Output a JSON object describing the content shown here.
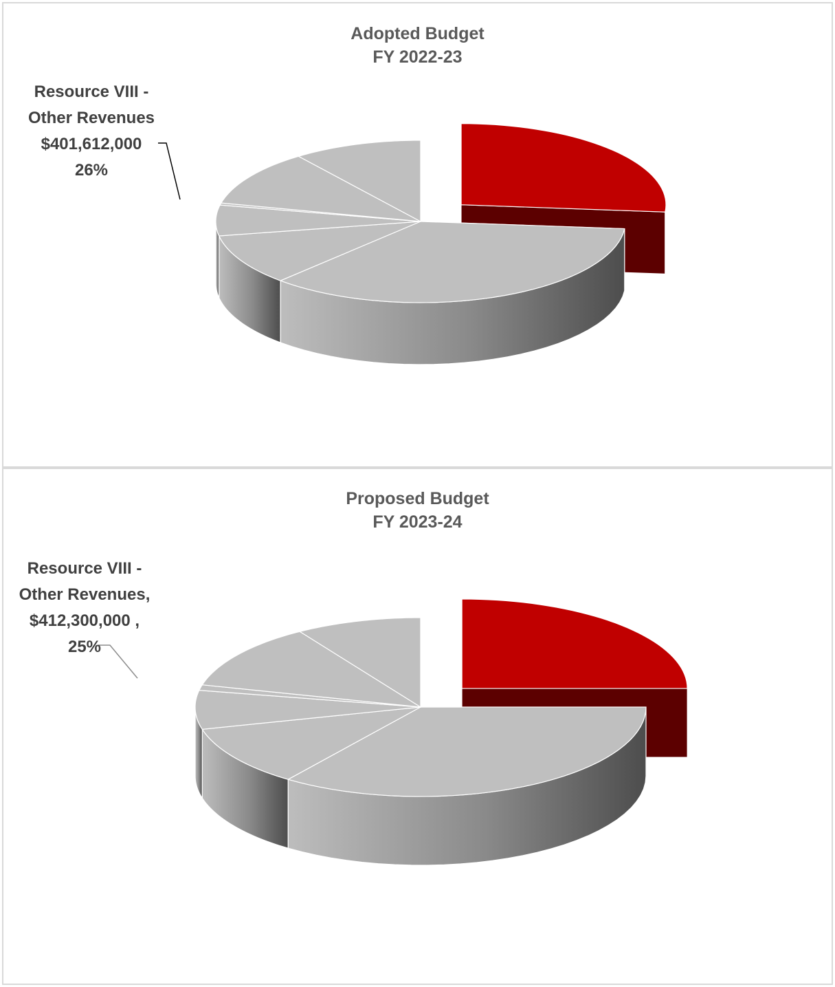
{
  "chart_data": [
    {
      "type": "pie",
      "style": "3d-exploded",
      "title": [
        "Adopted Budget",
        "FY 2022-23"
      ],
      "highlight_color": "#c00000",
      "other_color": "#bfbfbf",
      "slices": [
        {
          "label": "Resource VIII - Other Revenues",
          "value": 401612000,
          "percent": 26,
          "highlight": true
        },
        {
          "label": "",
          "percent": 35
        },
        {
          "label": "",
          "percent": 10
        },
        {
          "label": "",
          "percent": 6
        },
        {
          "label": "",
          "percent": 0.4
        },
        {
          "label": "",
          "percent": 11
        },
        {
          "label": "",
          "percent": 10
        }
      ],
      "callout": [
        "Resource VIII -",
        "Other Revenues",
        "$401,612,000",
        "26%"
      ]
    },
    {
      "type": "pie",
      "style": "3d-exploded",
      "title": [
        "Proposed Budget",
        "FY 2023-24"
      ],
      "highlight_color": "#c00000",
      "other_color": "#bfbfbf",
      "slices": [
        {
          "label": "Resource VIII - Other Revenues",
          "value": 412300000,
          "percent": 25,
          "highlight": true
        },
        {
          "label": "",
          "percent": 35
        },
        {
          "label": "",
          "percent": 11
        },
        {
          "label": "",
          "percent": 7
        },
        {
          "label": "",
          "percent": 1
        },
        {
          "label": "",
          "percent": 12
        },
        {
          "label": "",
          "percent": 9
        }
      ],
      "callout": [
        "Resource VIII -",
        "Other Revenues,",
        "$412,300,000 ,",
        "25%"
      ]
    }
  ]
}
